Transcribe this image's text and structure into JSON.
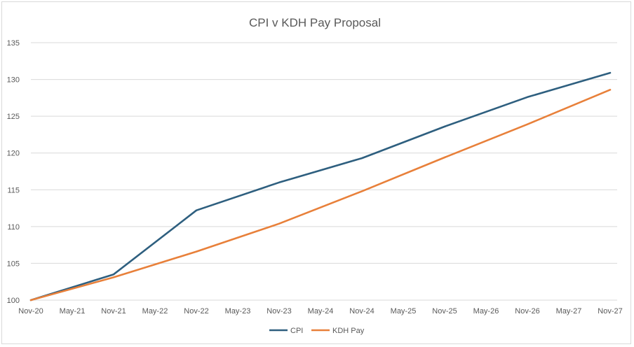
{
  "chart_data": {
    "type": "line",
    "title": "CPI v KDH Pay Proposal",
    "xlabel": "",
    "ylabel": "",
    "ylim": [
      100,
      135
    ],
    "yticks": [
      100,
      105,
      110,
      115,
      120,
      125,
      130,
      135
    ],
    "categories": [
      "Nov-20",
      "May-21",
      "Nov-21",
      "May-22",
      "Nov-22",
      "May-23",
      "Nov-23",
      "May-24",
      "Nov-24",
      "May-25",
      "Nov-25",
      "May-26",
      "Nov-26",
      "May-27",
      "Nov-27"
    ],
    "grid": true,
    "legend_position": "bottom",
    "series": [
      {
        "name": "CPI",
        "color": "#2e5f7f",
        "points": [
          {
            "x": "Nov-20",
            "y": 100
          },
          {
            "x": "Nov-21",
            "y": 103.5
          },
          {
            "x": "Nov-22",
            "y": 112.2
          },
          {
            "x": "Nov-23",
            "y": 116
          },
          {
            "x": "Nov-24",
            "y": 119.3
          },
          {
            "x": "Nov-25",
            "y": 123.6
          },
          {
            "x": "Nov-26",
            "y": 127.6
          },
          {
            "x": "Nov-27",
            "y": 130.9
          }
        ]
      },
      {
        "name": "KDH Pay",
        "color": "#e8803a",
        "points": [
          {
            "x": "Nov-20",
            "y": 100
          },
          {
            "x": "Nov-21",
            "y": 103.1
          },
          {
            "x": "Nov-22",
            "y": 106.6
          },
          {
            "x": "Nov-23",
            "y": 110.4
          },
          {
            "x": "Nov-24",
            "y": 114.8
          },
          {
            "x": "Nov-25",
            "y": 119.4
          },
          {
            "x": "Nov-26",
            "y": 123.9
          },
          {
            "x": "Nov-27",
            "y": 128.6
          }
        ]
      }
    ]
  }
}
